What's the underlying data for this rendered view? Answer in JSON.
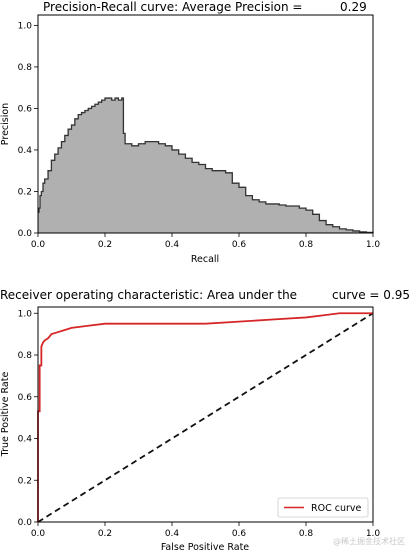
{
  "chart_data": [
    {
      "type": "area",
      "title": "Precision-Recall curve: Average Precision =",
      "title_value": "0.29",
      "xlabel": "Recall",
      "ylabel": "Precision",
      "xlim": [
        0,
        1
      ],
      "ylim": [
        0,
        1.05
      ],
      "xticks": [
        "0.0",
        "0.2",
        "0.4",
        "0.6",
        "0.8",
        "1.0"
      ],
      "yticks": [
        "0.0",
        "0.2",
        "0.4",
        "0.6",
        "0.8",
        "1.0"
      ],
      "grid": false,
      "fill_color": "#b0b0b0",
      "line_color": "#333333",
      "series": [
        {
          "x": [
            0,
            0.003,
            0.006,
            0.01,
            0.015,
            0.02,
            0.03,
            0.04,
            0.05,
            0.06,
            0.07,
            0.08,
            0.09,
            0.1,
            0.11,
            0.12,
            0.13,
            0.14,
            0.15,
            0.16,
            0.17,
            0.18,
            0.19,
            0.2,
            0.21,
            0.22,
            0.23,
            0.24,
            0.25,
            0.255,
            0.26,
            0.28,
            0.3,
            0.32,
            0.34,
            0.36,
            0.38,
            0.4,
            0.42,
            0.44,
            0.46,
            0.48,
            0.5,
            0.52,
            0.54,
            0.56,
            0.58,
            0.6,
            0.62,
            0.64,
            0.66,
            0.68,
            0.7,
            0.72,
            0.74,
            0.76,
            0.78,
            0.8,
            0.82,
            0.84,
            0.86,
            0.88,
            0.9,
            0.92,
            0.94,
            0.96,
            0.98,
            1.0
          ],
          "y": [
            0.1,
            0.12,
            0.18,
            0.2,
            0.24,
            0.26,
            0.3,
            0.35,
            0.38,
            0.41,
            0.44,
            0.47,
            0.5,
            0.52,
            0.55,
            0.57,
            0.58,
            0.59,
            0.6,
            0.61,
            0.62,
            0.63,
            0.64,
            0.65,
            0.65,
            0.64,
            0.65,
            0.64,
            0.65,
            0.48,
            0.43,
            0.42,
            0.43,
            0.44,
            0.44,
            0.43,
            0.42,
            0.4,
            0.38,
            0.36,
            0.34,
            0.33,
            0.31,
            0.3,
            0.3,
            0.29,
            0.24,
            0.22,
            0.18,
            0.16,
            0.15,
            0.14,
            0.14,
            0.135,
            0.13,
            0.13,
            0.12,
            0.11,
            0.09,
            0.06,
            0.04,
            0.03,
            0.02,
            0.015,
            0.01,
            0.005,
            0.003,
            0.0
          ]
        }
      ]
    },
    {
      "type": "line",
      "title": "Receiver operating characteristic: Area under the",
      "title_value": "curve = 0.95",
      "xlabel": "False Positive Rate",
      "ylabel": "True Positive Rate",
      "xlim": [
        0,
        1
      ],
      "ylim": [
        0,
        1.03
      ],
      "xticks": [
        "0.0",
        "0.2",
        "0.4",
        "0.6",
        "0.8",
        "1.0"
      ],
      "yticks": [
        "0.0",
        "0.2",
        "0.4",
        "0.6",
        "0.8",
        "1.0"
      ],
      "grid": false,
      "legend": {
        "placement": "lower right",
        "label": "ROC curve"
      },
      "series": [
        {
          "name": "ROC curve",
          "color": "#d62728",
          "style": "solid",
          "x": [
            0,
            0.0,
            0.005,
            0.005,
            0.01,
            0.01,
            0.015,
            0.02,
            0.03,
            0.04,
            0.06,
            0.08,
            0.1,
            0.15,
            0.2,
            0.25,
            0.3,
            0.4,
            0.5,
            0.6,
            0.7,
            0.8,
            0.85,
            0.9,
            1.0
          ],
          "y": [
            0,
            0.53,
            0.53,
            0.75,
            0.75,
            0.84,
            0.86,
            0.87,
            0.88,
            0.9,
            0.91,
            0.92,
            0.93,
            0.94,
            0.95,
            0.95,
            0.95,
            0.95,
            0.95,
            0.96,
            0.97,
            0.98,
            0.99,
            1.0,
            1.0
          ]
        },
        {
          "color": "#111111",
          "style": "dashed",
          "x": [
            0,
            1
          ],
          "y": [
            0,
            1
          ]
        }
      ]
    }
  ],
  "watermark": "@稀土掘金技术社区"
}
